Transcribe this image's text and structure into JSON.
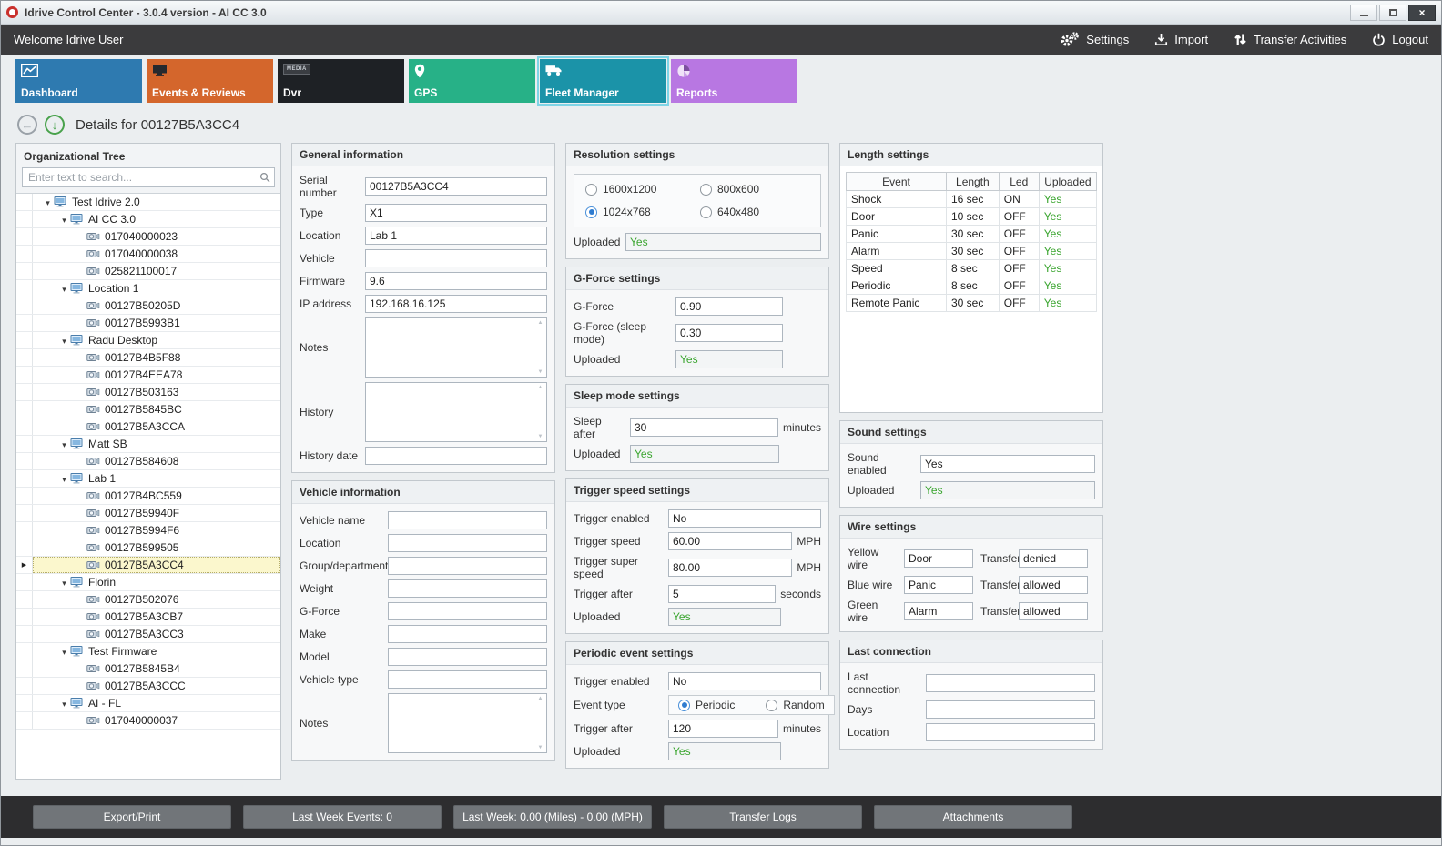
{
  "window": {
    "title": "Idrive Control Center - 3.0.4 version - AI CC 3.0",
    "controls": [
      {
        "id": "minimize",
        "icon": "minimize-icon"
      },
      {
        "id": "maximize",
        "icon": "maximize-icon"
      },
      {
        "id": "close",
        "icon": "close-icon"
      }
    ]
  },
  "topbar": {
    "welcome": "Welcome Idrive User",
    "actions": [
      {
        "id": "settings",
        "label": "Settings",
        "icon": "gears-icon"
      },
      {
        "id": "import",
        "label": "Import",
        "icon": "import-icon"
      },
      {
        "id": "transfer-activities",
        "label": "Transfer Activities",
        "icon": "transfer-arrows-icon"
      },
      {
        "id": "logout",
        "label": "Logout",
        "icon": "power-icon"
      }
    ]
  },
  "tabs": [
    {
      "label": "Dashboard",
      "color": "#2e7ab0",
      "icon": "line-chart-icon",
      "selected": false
    },
    {
      "label": "Events & Reviews",
      "color": "#d4662c",
      "icon": "monitor-icon",
      "selected": false
    },
    {
      "label": "Dvr",
      "color": "#1e2125",
      "icon": "media-badge-icon",
      "badge": "MEDIA",
      "selected": false
    },
    {
      "label": "GPS",
      "color": "#27b187",
      "icon": "map-pin-icon",
      "selected": false
    },
    {
      "label": "Fleet Manager",
      "color": "#1b93a8",
      "icon": "vehicle-icon",
      "selected": true
    },
    {
      "label": "Reports",
      "color": "#b877e2",
      "icon": "pie-chart-icon",
      "selected": false
    }
  ],
  "details_header": {
    "title": "Details for 00127B5A3CC4"
  },
  "tree": {
    "title": "Organizational Tree",
    "search_placeholder": "Enter text to search...",
    "items": [
      {
        "label": "Test Idrive 2.0",
        "level": 0,
        "type": "group"
      },
      {
        "label": "AI CC 3.0",
        "level": 1,
        "type": "group"
      },
      {
        "label": "017040000023",
        "level": 2,
        "type": "device"
      },
      {
        "label": "017040000038",
        "level": 2,
        "type": "device"
      },
      {
        "label": "025821100017",
        "level": 2,
        "type": "device"
      },
      {
        "label": "Location 1",
        "level": 1,
        "type": "group"
      },
      {
        "label": "00127B50205D",
        "level": 2,
        "type": "device"
      },
      {
        "label": "00127B5993B1",
        "level": 2,
        "type": "device"
      },
      {
        "label": "Radu Desktop",
        "level": 1,
        "type": "group"
      },
      {
        "label": "00127B4B5F88",
        "level": 2,
        "type": "device"
      },
      {
        "label": "00127B4EEA78",
        "level": 2,
        "type": "device"
      },
      {
        "label": "00127B503163",
        "level": 2,
        "type": "device"
      },
      {
        "label": "00127B5845BC",
        "level": 2,
        "type": "device"
      },
      {
        "label": "00127B5A3CCA",
        "level": 2,
        "type": "device"
      },
      {
        "label": "Matt SB",
        "level": 1,
        "type": "group"
      },
      {
        "label": "00127B584608",
        "level": 2,
        "type": "device"
      },
      {
        "label": "Lab 1",
        "level": 1,
        "type": "group"
      },
      {
        "label": "00127B4BC559",
        "level": 2,
        "type": "device"
      },
      {
        "label": "00127B59940F",
        "level": 2,
        "type": "device"
      },
      {
        "label": "00127B5994F6",
        "level": 2,
        "type": "device"
      },
      {
        "label": "00127B599505",
        "level": 2,
        "type": "device"
      },
      {
        "label": "00127B5A3CC4",
        "level": 2,
        "type": "device",
        "selected": true
      },
      {
        "label": "Florin",
        "level": 1,
        "type": "group"
      },
      {
        "label": "00127B502076",
        "level": 2,
        "type": "device"
      },
      {
        "label": "00127B5A3CB7",
        "level": 2,
        "type": "device"
      },
      {
        "label": "00127B5A3CC3",
        "level": 2,
        "type": "device"
      },
      {
        "label": "Test Firmware",
        "level": 1,
        "type": "group"
      },
      {
        "label": "00127B5845B4",
        "level": 2,
        "type": "device"
      },
      {
        "label": "00127B5A3CCC",
        "level": 2,
        "type": "device"
      },
      {
        "label": "AI - FL",
        "level": 1,
        "type": "group"
      },
      {
        "label": "017040000037",
        "level": 2,
        "type": "device"
      }
    ]
  },
  "general_info": {
    "title": "General information",
    "fields": [
      {
        "label": "Serial number",
        "value": "00127B5A3CC4",
        "kind": "input"
      },
      {
        "label": "Type",
        "value": "X1",
        "kind": "input"
      },
      {
        "label": "Location",
        "value": "Lab 1",
        "kind": "input"
      },
      {
        "label": "Vehicle",
        "value": "",
        "kind": "input"
      },
      {
        "label": "Firmware",
        "value": "9.6",
        "kind": "input"
      },
      {
        "label": "IP address",
        "value": "192.168.16.125",
        "kind": "input"
      },
      {
        "label": "Notes",
        "value": "",
        "kind": "textarea"
      },
      {
        "label": "History",
        "value": "",
        "kind": "textarea"
      },
      {
        "label": "History date",
        "value": "",
        "kind": "input"
      }
    ]
  },
  "vehicle_info": {
    "title": "Vehicle information",
    "fields": [
      {
        "label": "Vehicle name",
        "value": "",
        "kind": "input"
      },
      {
        "label": "Location",
        "value": "",
        "kind": "input"
      },
      {
        "label": "Group/department",
        "value": "",
        "kind": "input"
      },
      {
        "label": "Weight",
        "value": "",
        "kind": "input"
      },
      {
        "label": "G-Force",
        "value": "",
        "kind": "input"
      },
      {
        "label": "Make",
        "value": "",
        "kind": "input"
      },
      {
        "label": "Model",
        "value": "",
        "kind": "input"
      },
      {
        "label": "Vehicle type",
        "value": "",
        "kind": "input"
      },
      {
        "label": "Notes",
        "value": "",
        "kind": "textarea"
      }
    ]
  },
  "resolution_settings": {
    "title": "Resolution settings",
    "options": [
      {
        "label": "1600x1200",
        "checked": false
      },
      {
        "label": "800x600",
        "checked": false
      },
      {
        "label": "1024x768",
        "checked": true
      },
      {
        "label": "640x480",
        "checked": false
      }
    ],
    "uploaded_label": "Uploaded",
    "uploaded_value": "Yes"
  },
  "gforce_settings": {
    "title": "G-Force settings",
    "fields": [
      {
        "label": "G-Force",
        "value": "0.90"
      },
      {
        "label": "G-Force (sleep mode)",
        "value": "0.30"
      }
    ],
    "uploaded_label": "Uploaded",
    "uploaded_value": "Yes"
  },
  "sleep_settings": {
    "title": "Sleep mode settings",
    "fields": [
      {
        "label": "Sleep after",
        "value": "30",
        "suffix": "minutes"
      }
    ],
    "uploaded_label": "Uploaded",
    "uploaded_value": "Yes"
  },
  "trigger_speed_settings": {
    "title": "Trigger speed settings",
    "fields": [
      {
        "label": "Trigger enabled",
        "value": "No"
      },
      {
        "label": "Trigger speed",
        "value": "60.00",
        "suffix": "MPH"
      },
      {
        "label": "Trigger super speed",
        "value": "80.00",
        "suffix": "MPH"
      },
      {
        "label": "Trigger after",
        "value": "5",
        "suffix": "seconds"
      }
    ],
    "uploaded_label": "Uploaded",
    "uploaded_value": "Yes"
  },
  "periodic_event_settings": {
    "title": "Periodic event settings",
    "trigger_enabled": {
      "label": "Trigger enabled",
      "value": "No"
    },
    "event_type": {
      "label": "Event type",
      "options": [
        {
          "label": "Periodic",
          "checked": true
        },
        {
          "label": "Random",
          "checked": false
        }
      ]
    },
    "trigger_after": {
      "label": "Trigger after",
      "value": "120",
      "suffix": "minutes"
    },
    "uploaded_label": "Uploaded",
    "uploaded_value": "Yes"
  },
  "length_settings": {
    "title": "Length settings",
    "headers": [
      "Event",
      "Length",
      "Led",
      "Uploaded"
    ],
    "rows": [
      {
        "event": "Shock",
        "length": "16 sec",
        "led": "ON",
        "uploaded": "Yes"
      },
      {
        "event": "Door",
        "length": "10 sec",
        "led": "OFF",
        "uploaded": "Yes"
      },
      {
        "event": "Panic",
        "length": "30 sec",
        "led": "OFF",
        "uploaded": "Yes"
      },
      {
        "event": "Alarm",
        "length": "30 sec",
        "led": "OFF",
        "uploaded": "Yes"
      },
      {
        "event": "Speed",
        "length": "8 sec",
        "led": "OFF",
        "uploaded": "Yes"
      },
      {
        "event": "Periodic",
        "length": "8 sec",
        "led": "OFF",
        "uploaded": "Yes"
      },
      {
        "event": "Remote Panic",
        "length": "30 sec",
        "led": "OFF",
        "uploaded": "Yes"
      }
    ]
  },
  "sound_settings": {
    "title": "Sound settings",
    "fields": [
      {
        "label": "Sound enabled",
        "value": "Yes"
      }
    ],
    "uploaded_label": "Uploaded",
    "uploaded_value": "Yes"
  },
  "wire_settings": {
    "title": "Wire settings",
    "rows": [
      {
        "label": "Yellow wire",
        "value": "Door",
        "transfer_label": "Transfer",
        "transfer_value": "denied"
      },
      {
        "label": "Blue wire",
        "value": "Panic",
        "transfer_label": "Transfer",
        "transfer_value": "allowed"
      },
      {
        "label": "Green wire",
        "value": "Alarm",
        "transfer_label": "Transfer",
        "transfer_value": "allowed"
      }
    ]
  },
  "last_connection": {
    "title": "Last connection",
    "fields": [
      {
        "label": "Last connection",
        "value": ""
      },
      {
        "label": "Days",
        "value": ""
      },
      {
        "label": "Location",
        "value": ""
      }
    ]
  },
  "bottom_bar": {
    "buttons": [
      "Export/Print",
      "Last Week Events: 0",
      "Last Week: 0.00 (Miles) - 0.00 (MPH)",
      "Transfer Logs",
      "Attachments"
    ]
  },
  "colors": {
    "uploaded_green": "#3aa52f",
    "radio_blue": "#2f7cd0",
    "selected_row_bg": "#fbf7cd",
    "selected_tab_outline": "#7fd4e6"
  }
}
